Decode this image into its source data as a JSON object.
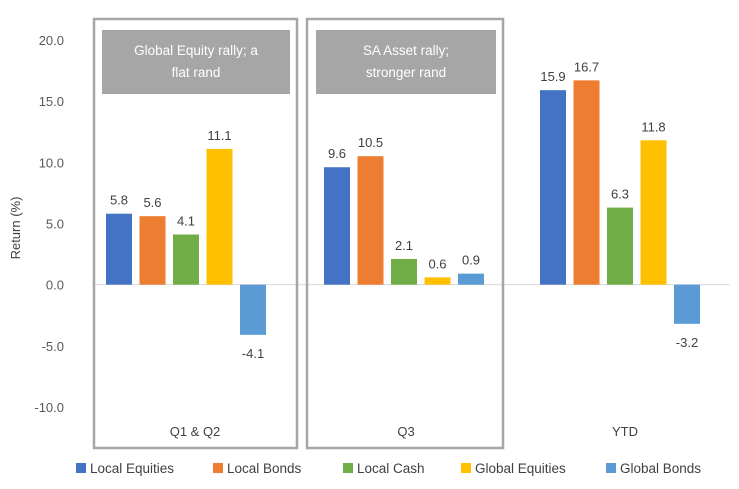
{
  "chart_data": {
    "type": "bar",
    "ylabel": "Return (%)",
    "ylim": [
      -10,
      20
    ],
    "y_ticks": [
      "20.0",
      "15.0",
      "10.0",
      "5.0",
      "0.0",
      "-5.0",
      "-10.0"
    ],
    "y_tick_values": [
      20,
      15,
      10,
      5,
      0,
      -5,
      -10
    ],
    "categories": [
      "Q1 & Q2",
      "Q3",
      "YTD"
    ],
    "series": [
      {
        "name": "Local Equities",
        "color": "#4472C4",
        "values": [
          5.8,
          9.6,
          15.9
        ],
        "labels": [
          "5.8",
          "9.6",
          "15.9"
        ]
      },
      {
        "name": "Local Bonds",
        "color": "#ED7D31",
        "values": [
          5.6,
          10.5,
          16.7
        ],
        "labels": [
          "5.6",
          "10.5",
          "16.7"
        ]
      },
      {
        "name": "Local Cash",
        "color": "#70AD47",
        "values": [
          4.1,
          2.1,
          6.3
        ],
        "labels": [
          "4.1",
          "2.1",
          "6.3"
        ]
      },
      {
        "name": "Global Equities",
        "color": "#FFC000",
        "values": [
          11.1,
          0.6,
          11.8
        ],
        "labels": [
          "11.1",
          "0.6",
          "11.8"
        ]
      },
      {
        "name": "Global Bonds",
        "color": "#5B9BD5",
        "values": [
          -4.1,
          0.9,
          -3.2
        ],
        "labels": [
          "-4.1",
          "0.9",
          "-3.2"
        ]
      }
    ],
    "annotations": [
      {
        "category": "Q1 & Q2",
        "lines": [
          "Global Equity rally; a",
          "flat rand"
        ]
      },
      {
        "category": "Q3",
        "lines": [
          "SA Asset rally;",
          "stronger rand"
        ]
      }
    ],
    "grid": false,
    "legend_position": "bottom"
  }
}
